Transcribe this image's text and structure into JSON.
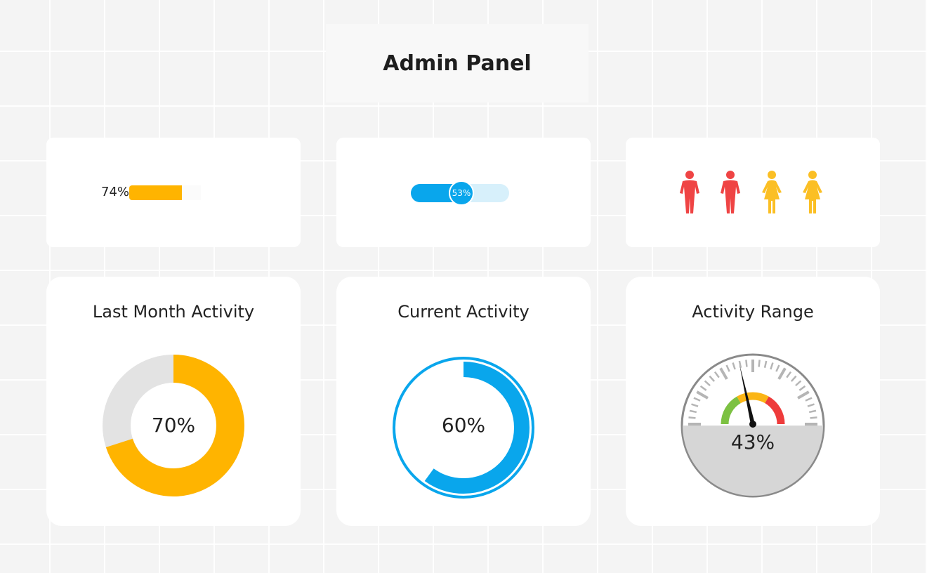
{
  "header": {
    "title": "Admin Panel"
  },
  "widgets": {
    "progress_bar": {
      "label": "74%",
      "value": 0.74,
      "color": "#ffb400"
    },
    "slider": {
      "label": "53%",
      "value": 0.53,
      "color": "#09a6ec",
      "track_color": "#d7f0fb"
    },
    "people": {
      "icons": [
        {
          "icon": "male-person-icon",
          "color": "#ef4444"
        },
        {
          "icon": "male-person-icon",
          "color": "#ef4444"
        },
        {
          "icon": "female-person-icon",
          "color": "#fbbf24"
        },
        {
          "icon": "female-person-icon",
          "color": "#fbbf24"
        }
      ]
    },
    "last_month": {
      "title": "Last Month Activity",
      "value_label": "70%",
      "value": 0.7,
      "color": "#ffb400",
      "track_color": "#e3e3e3"
    },
    "current": {
      "title": "Current Activity",
      "value_label": "60%",
      "value": 0.6,
      "color": "#09a6ec"
    },
    "range": {
      "title": "Activity Range",
      "value_label": "43%",
      "value": 0.43,
      "zone_colors": [
        "#7cc142",
        "#fbb515",
        "#ee3b3b"
      ]
    }
  }
}
